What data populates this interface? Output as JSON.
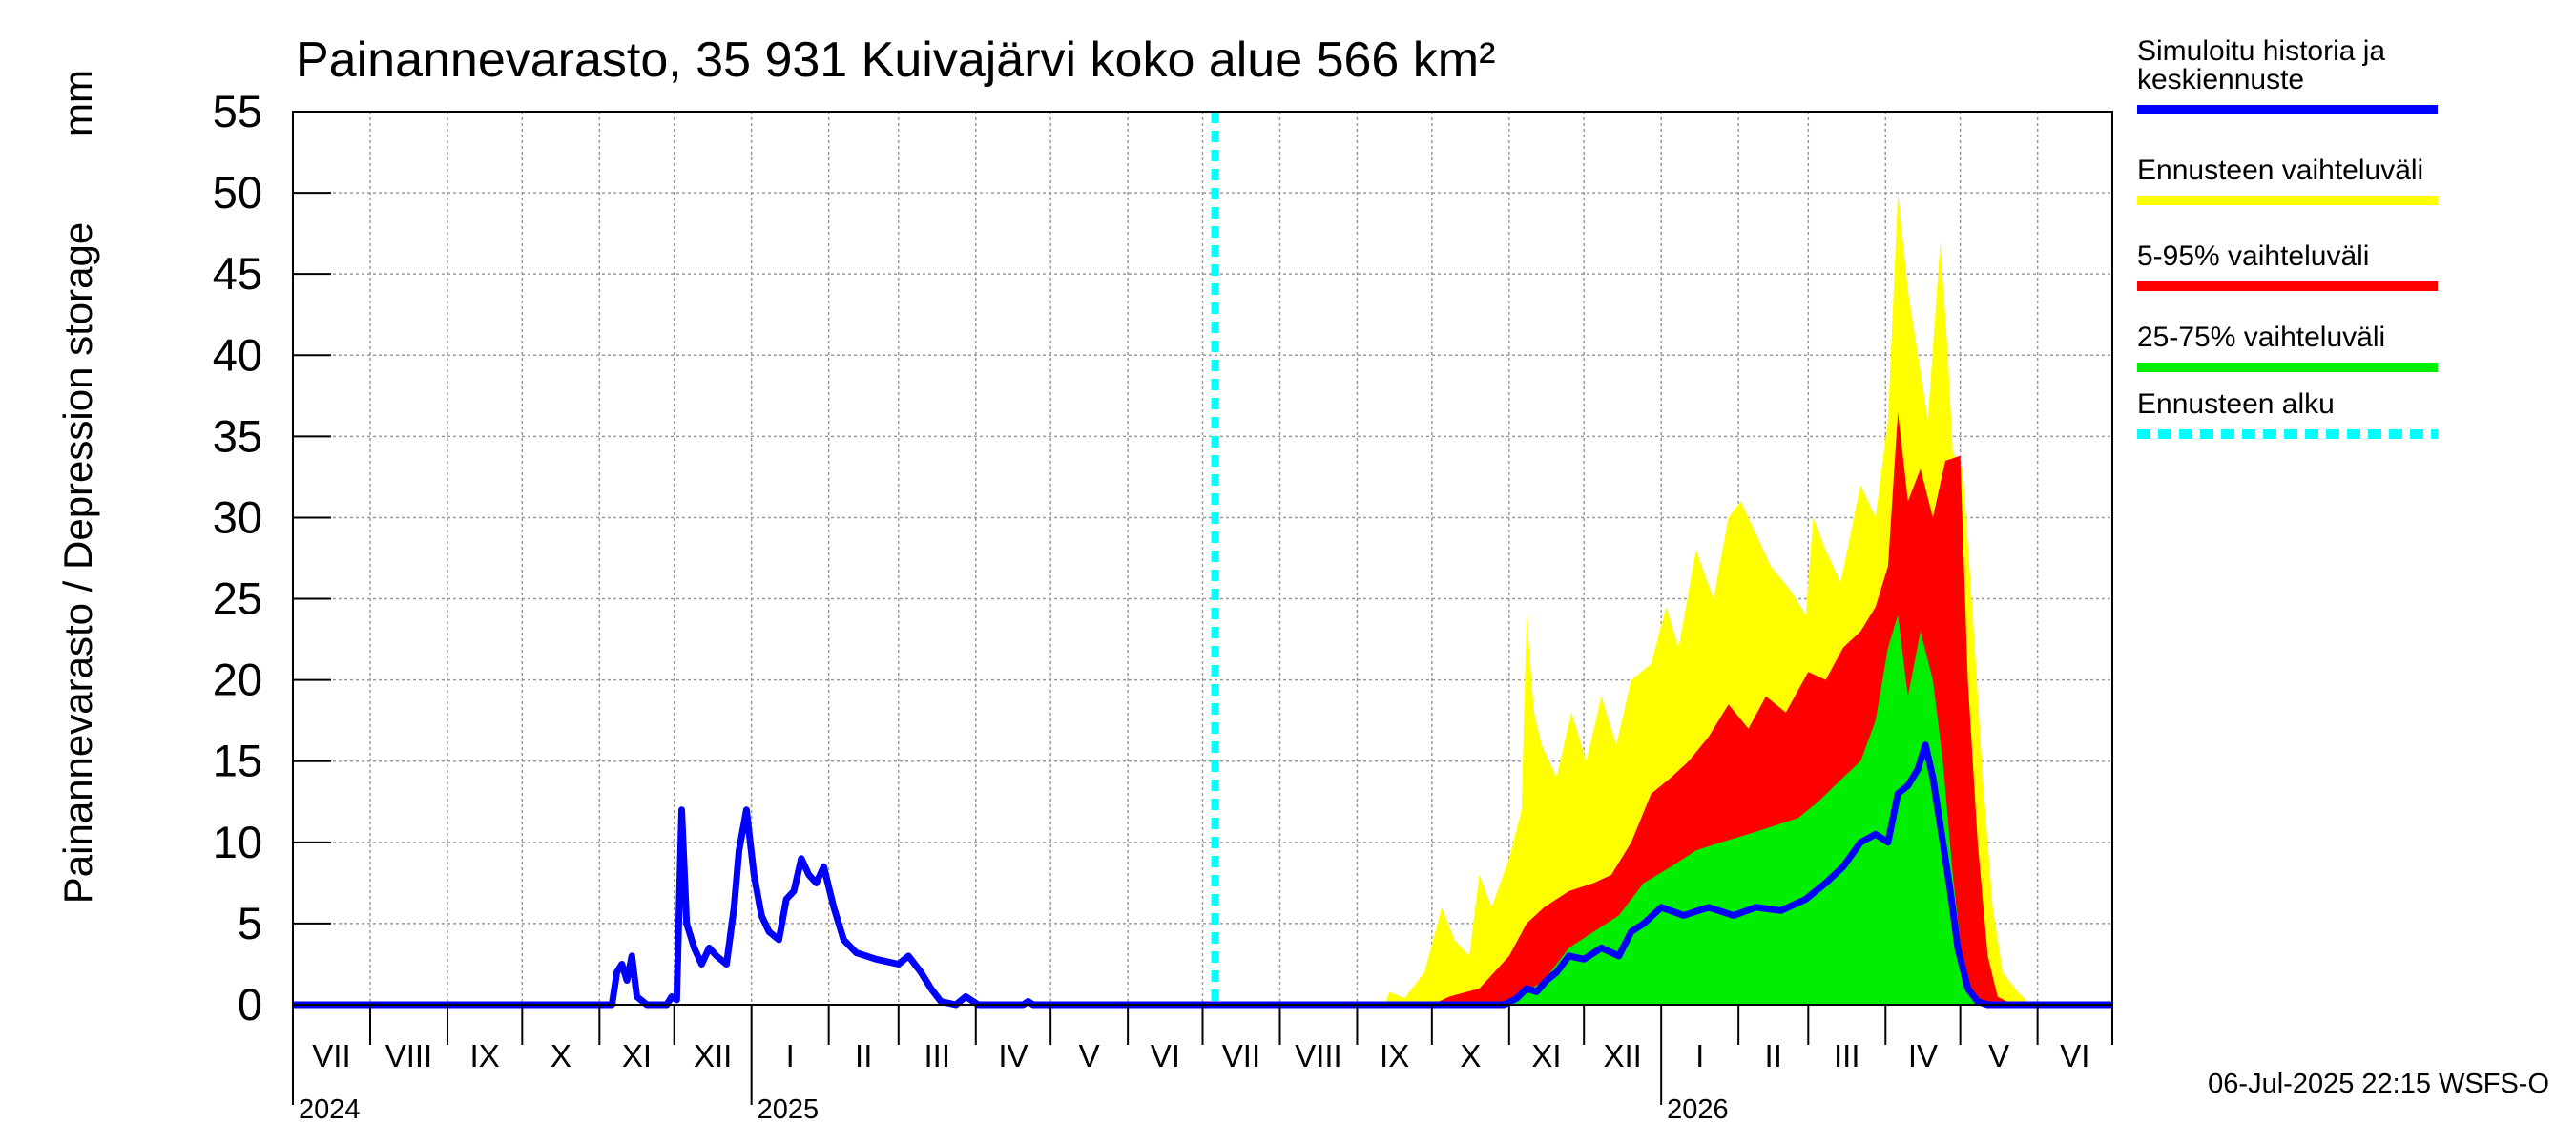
{
  "chart_data": {
    "type": "area",
    "title": "Painannevarasto, 35 931 Kuivajärvi koko alue 566 km²",
    "ylabel": "Painannevarasto / Depression storage",
    "yunit": "mm",
    "ylim": [
      0,
      55
    ],
    "yticks": [
      "0",
      "5",
      "10",
      "15",
      "20",
      "25",
      "30",
      "35",
      "40",
      "45",
      "50",
      "55"
    ],
    "grid": true,
    "legend_position": "right",
    "xlim": [
      "2024-07-01",
      "2026-07-01"
    ],
    "months": [
      "VII",
      "VIII",
      "IX",
      "X",
      "XI",
      "XII",
      "I",
      "II",
      "III",
      "IV",
      "V",
      "VI",
      "VII",
      "VIII",
      "IX",
      "X",
      "XI",
      "XII",
      "I",
      "II",
      "III",
      "IV",
      "V",
      "VI"
    ],
    "years": [
      {
        "label": "2024",
        "date": "2024-07-01"
      },
      {
        "label": "2025",
        "date": "2025-01-01"
      },
      {
        "label": "2026",
        "date": "2026-01-01"
      }
    ],
    "forecast_start": "2025-07-06",
    "legend": [
      {
        "label": "Simuloitu historia ja\nkeskiennuste",
        "color": "#0000ff",
        "style": "solid"
      },
      {
        "label": "Ennusteen vaihteluväli",
        "color": "#ffff00",
        "style": "solid"
      },
      {
        "label": "5-95% vaihteluväli",
        "color": "#ff0000",
        "style": "solid"
      },
      {
        "label": "25-75% vaihteluväli",
        "color": "#00ee00",
        "style": "solid"
      },
      {
        "label": "Ennusteen alku",
        "color": "#00ffff",
        "style": "dashed"
      }
    ],
    "series": [
      {
        "name": "Simuloitu historia ja keskiennuste",
        "color": "#0000ff",
        "points": [
          [
            "2024-07-01",
            0
          ],
          [
            "2024-11-06",
            0
          ],
          [
            "2024-11-08",
            2.0
          ],
          [
            "2024-11-10",
            2.5
          ],
          [
            "2024-11-12",
            1.5
          ],
          [
            "2024-11-14",
            3.0
          ],
          [
            "2024-11-16",
            0.5
          ],
          [
            "2024-11-20",
            0
          ],
          [
            "2024-11-28",
            0
          ],
          [
            "2024-11-30",
            0.5
          ],
          [
            "2024-12-02",
            0.3
          ],
          [
            "2024-12-04",
            12.0
          ],
          [
            "2024-12-06",
            5.0
          ],
          [
            "2024-12-09",
            3.5
          ],
          [
            "2024-12-12",
            2.5
          ],
          [
            "2024-12-15",
            3.5
          ],
          [
            "2024-12-18",
            3.0
          ],
          [
            "2024-12-22",
            2.5
          ],
          [
            "2024-12-25",
            6.0
          ],
          [
            "2024-12-27",
            9.5
          ],
          [
            "2024-12-30",
            12.0
          ],
          [
            "2025-01-02",
            8.0
          ],
          [
            "2025-01-05",
            5.5
          ],
          [
            "2025-01-08",
            4.5
          ],
          [
            "2025-01-12",
            4.0
          ],
          [
            "2025-01-15",
            6.5
          ],
          [
            "2025-01-18",
            7.0
          ],
          [
            "2025-01-21",
            9.0
          ],
          [
            "2025-01-24",
            8.0
          ],
          [
            "2025-01-27",
            7.5
          ],
          [
            "2025-01-30",
            8.5
          ],
          [
            "2025-02-03",
            6.0
          ],
          [
            "2025-02-07",
            4.0
          ],
          [
            "2025-02-12",
            3.2
          ],
          [
            "2025-02-20",
            2.8
          ],
          [
            "2025-03-01",
            2.5
          ],
          [
            "2025-03-05",
            3.0
          ],
          [
            "2025-03-10",
            2.0
          ],
          [
            "2025-03-14",
            1.0
          ],
          [
            "2025-03-18",
            0.2
          ],
          [
            "2025-03-24",
            0
          ],
          [
            "2025-03-28",
            0.5
          ],
          [
            "2025-04-02",
            0
          ],
          [
            "2025-04-20",
            0
          ],
          [
            "2025-04-22",
            0.2
          ],
          [
            "2025-04-24",
            0
          ],
          [
            "2025-10-15",
            0
          ],
          [
            "2025-10-30",
            0
          ],
          [
            "2025-11-04",
            0.4
          ],
          [
            "2025-11-08",
            1.0
          ],
          [
            "2025-11-12",
            0.8
          ],
          [
            "2025-11-16",
            1.5
          ],
          [
            "2025-11-20",
            2.0
          ],
          [
            "2025-11-25",
            3.0
          ],
          [
            "2025-12-01",
            2.8
          ],
          [
            "2025-12-08",
            3.5
          ],
          [
            "2025-12-15",
            3.0
          ],
          [
            "2025-12-20",
            4.5
          ],
          [
            "2025-12-25",
            5.0
          ],
          [
            "2026-01-01",
            6.0
          ],
          [
            "2026-01-10",
            5.5
          ],
          [
            "2026-01-20",
            6.0
          ],
          [
            "2026-01-30",
            5.5
          ],
          [
            "2026-02-08",
            6.0
          ],
          [
            "2026-02-18",
            5.8
          ],
          [
            "2026-02-28",
            6.5
          ],
          [
            "2026-03-08",
            7.5
          ],
          [
            "2026-03-15",
            8.5
          ],
          [
            "2026-03-22",
            10.0
          ],
          [
            "2026-03-28",
            10.5
          ],
          [
            "2026-04-02",
            10.0
          ],
          [
            "2026-04-06",
            13.0
          ],
          [
            "2026-04-10",
            13.5
          ],
          [
            "2026-04-14",
            14.5
          ],
          [
            "2026-04-17",
            16.0
          ],
          [
            "2026-04-20",
            14.0
          ],
          [
            "2026-04-24",
            10.0
          ],
          [
            "2026-04-27",
            7.0
          ],
          [
            "2026-04-30",
            3.5
          ],
          [
            "2026-05-04",
            1.0
          ],
          [
            "2026-05-08",
            0.2
          ],
          [
            "2026-05-12",
            0
          ],
          [
            "2026-07-01",
            0
          ]
        ]
      },
      {
        "name": "Ennusteen vaihteluväli",
        "color": "#ffff00",
        "points": [
          [
            "2025-09-12",
            0
          ],
          [
            "2025-09-14",
            0.8
          ],
          [
            "2025-09-20",
            0.4
          ],
          [
            "2025-09-28",
            2.0
          ],
          [
            "2025-10-05",
            6.0
          ],
          [
            "2025-10-10",
            4.0
          ],
          [
            "2025-10-16",
            3.0
          ],
          [
            "2025-10-20",
            8.0
          ],
          [
            "2025-10-25",
            6.0
          ],
          [
            "2025-11-01",
            9.0
          ],
          [
            "2025-11-06",
            12.0
          ],
          [
            "2025-11-08",
            24.0
          ],
          [
            "2025-11-11",
            18.0
          ],
          [
            "2025-11-14",
            16.0
          ],
          [
            "2025-11-20",
            14.0
          ],
          [
            "2025-11-26",
            18.0
          ],
          [
            "2025-12-02",
            15.0
          ],
          [
            "2025-12-08",
            19.0
          ],
          [
            "2025-12-14",
            16.0
          ],
          [
            "2025-12-20",
            20.0
          ],
          [
            "2025-12-28",
            21.0
          ],
          [
            "2026-01-03",
            24.5
          ],
          [
            "2026-01-08",
            22.0
          ],
          [
            "2026-01-15",
            28.0
          ],
          [
            "2026-01-22",
            25.0
          ],
          [
            "2026-01-28",
            30.0
          ],
          [
            "2026-02-02",
            31.0
          ],
          [
            "2026-02-08",
            29.0
          ],
          [
            "2026-02-14",
            27.0
          ],
          [
            "2026-02-22",
            25.5
          ],
          [
            "2026-02-28",
            24.0
          ],
          [
            "2026-03-03",
            30.0
          ],
          [
            "2026-03-08",
            28.0
          ],
          [
            "2026-03-14",
            26.0
          ],
          [
            "2026-03-22",
            32.0
          ],
          [
            "2026-03-28",
            30.0
          ],
          [
            "2026-04-02",
            36.0
          ],
          [
            "2026-04-06",
            50.0
          ],
          [
            "2026-04-10",
            44.0
          ],
          [
            "2026-04-14",
            40.0
          ],
          [
            "2026-04-18",
            36.0
          ],
          [
            "2026-04-23",
            47.0
          ],
          [
            "2026-04-26",
            40.0
          ],
          [
            "2026-04-28",
            34.0
          ],
          [
            "2026-05-02",
            33.0
          ],
          [
            "2026-05-06",
            24.0
          ],
          [
            "2026-05-10",
            14.0
          ],
          [
            "2026-05-14",
            6.0
          ],
          [
            "2026-05-18",
            2.0
          ],
          [
            "2026-05-24",
            0.8
          ],
          [
            "2026-05-28",
            0.2
          ],
          [
            "2026-06-02",
            0
          ]
        ]
      },
      {
        "name": "5-95% vaihteluväli",
        "color": "#ff0000",
        "points": [
          [
            "2025-10-01",
            0
          ],
          [
            "2025-10-08",
            0.5
          ],
          [
            "2025-10-20",
            1.0
          ],
          [
            "2025-11-01",
            3.0
          ],
          [
            "2025-11-08",
            5.0
          ],
          [
            "2025-11-15",
            6.0
          ],
          [
            "2025-11-25",
            7.0
          ],
          [
            "2025-12-05",
            7.5
          ],
          [
            "2025-12-12",
            8.0
          ],
          [
            "2025-12-20",
            10.0
          ],
          [
            "2025-12-28",
            13.0
          ],
          [
            "2026-01-05",
            14.0
          ],
          [
            "2026-01-12",
            15.0
          ],
          [
            "2026-01-20",
            16.5
          ],
          [
            "2026-01-28",
            18.5
          ],
          [
            "2026-02-05",
            17.0
          ],
          [
            "2026-02-12",
            19.0
          ],
          [
            "2026-02-20",
            18.0
          ],
          [
            "2026-03-01",
            20.5
          ],
          [
            "2026-03-08",
            20.0
          ],
          [
            "2026-03-15",
            22.0
          ],
          [
            "2026-03-22",
            23.0
          ],
          [
            "2026-03-28",
            24.5
          ],
          [
            "2026-04-02",
            27.0
          ],
          [
            "2026-04-06",
            36.5
          ],
          [
            "2026-04-10",
            31.0
          ],
          [
            "2026-04-15",
            33.0
          ],
          [
            "2026-04-20",
            30.0
          ],
          [
            "2026-04-25",
            33.5
          ],
          [
            "2026-05-01",
            33.8
          ],
          [
            "2026-05-04",
            20.0
          ],
          [
            "2026-05-08",
            10.0
          ],
          [
            "2026-05-12",
            3.0
          ],
          [
            "2026-05-16",
            0.5
          ],
          [
            "2026-05-22",
            0
          ]
        ]
      },
      {
        "name": "25-75% vaihteluväli",
        "color": "#00ee00",
        "points": [
          [
            "2025-10-25",
            0
          ],
          [
            "2025-11-05",
            0.5
          ],
          [
            "2025-11-15",
            1.5
          ],
          [
            "2025-11-25",
            3.5
          ],
          [
            "2025-12-05",
            4.5
          ],
          [
            "2025-12-15",
            5.5
          ],
          [
            "2025-12-25",
            7.5
          ],
          [
            "2026-01-05",
            8.5
          ],
          [
            "2026-01-15",
            9.5
          ],
          [
            "2026-01-25",
            10.0
          ],
          [
            "2026-02-05",
            10.5
          ],
          [
            "2026-02-15",
            11.0
          ],
          [
            "2026-02-25",
            11.5
          ],
          [
            "2026-03-05",
            12.5
          ],
          [
            "2026-03-15",
            14.0
          ],
          [
            "2026-03-22",
            15.0
          ],
          [
            "2026-03-28",
            17.5
          ],
          [
            "2026-04-02",
            22.0
          ],
          [
            "2026-04-06",
            24.0
          ],
          [
            "2026-04-10",
            19.0
          ],
          [
            "2026-04-15",
            23.0
          ],
          [
            "2026-04-20",
            20.0
          ],
          [
            "2026-04-24",
            15.0
          ],
          [
            "2026-04-28",
            8.0
          ],
          [
            "2026-05-02",
            2.5
          ],
          [
            "2026-05-06",
            0.5
          ],
          [
            "2026-05-10",
            0
          ]
        ]
      }
    ]
  },
  "footer": "06-Jul-2025 22:15 WSFS-O"
}
